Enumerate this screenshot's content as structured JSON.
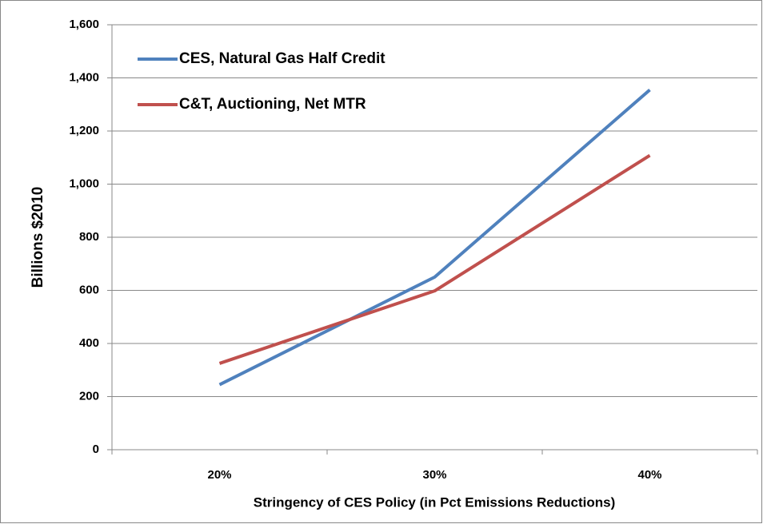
{
  "chart_data": {
    "type": "line",
    "x_label": "Stringency of CES Policy (in Pct Emissions Reductions)",
    "y_label": "Billions $2010",
    "categories": [
      "20%",
      "30%",
      "40%"
    ],
    "series": [
      {
        "name": "CES, Natural Gas Half Credit",
        "color": "#4f81bd",
        "values": [
          245,
          650,
          1355
        ]
      },
      {
        "name": "C&T, Auctioning, Net MTR",
        "color": "#c0504d",
        "values": [
          325,
          598,
          1108
        ]
      }
    ],
    "ylim": [
      0,
      1600
    ],
    "yticks": [
      0,
      200,
      400,
      600,
      800,
      {
        "value": 1000,
        "label": "1,000"
      },
      {
        "value": 1200,
        "label": "1,200"
      },
      {
        "value": 1400,
        "label": "1,400"
      },
      {
        "value": 1600,
        "label": "1,600"
      }
    ],
    "grid": true,
    "legend": "upper-left"
  }
}
